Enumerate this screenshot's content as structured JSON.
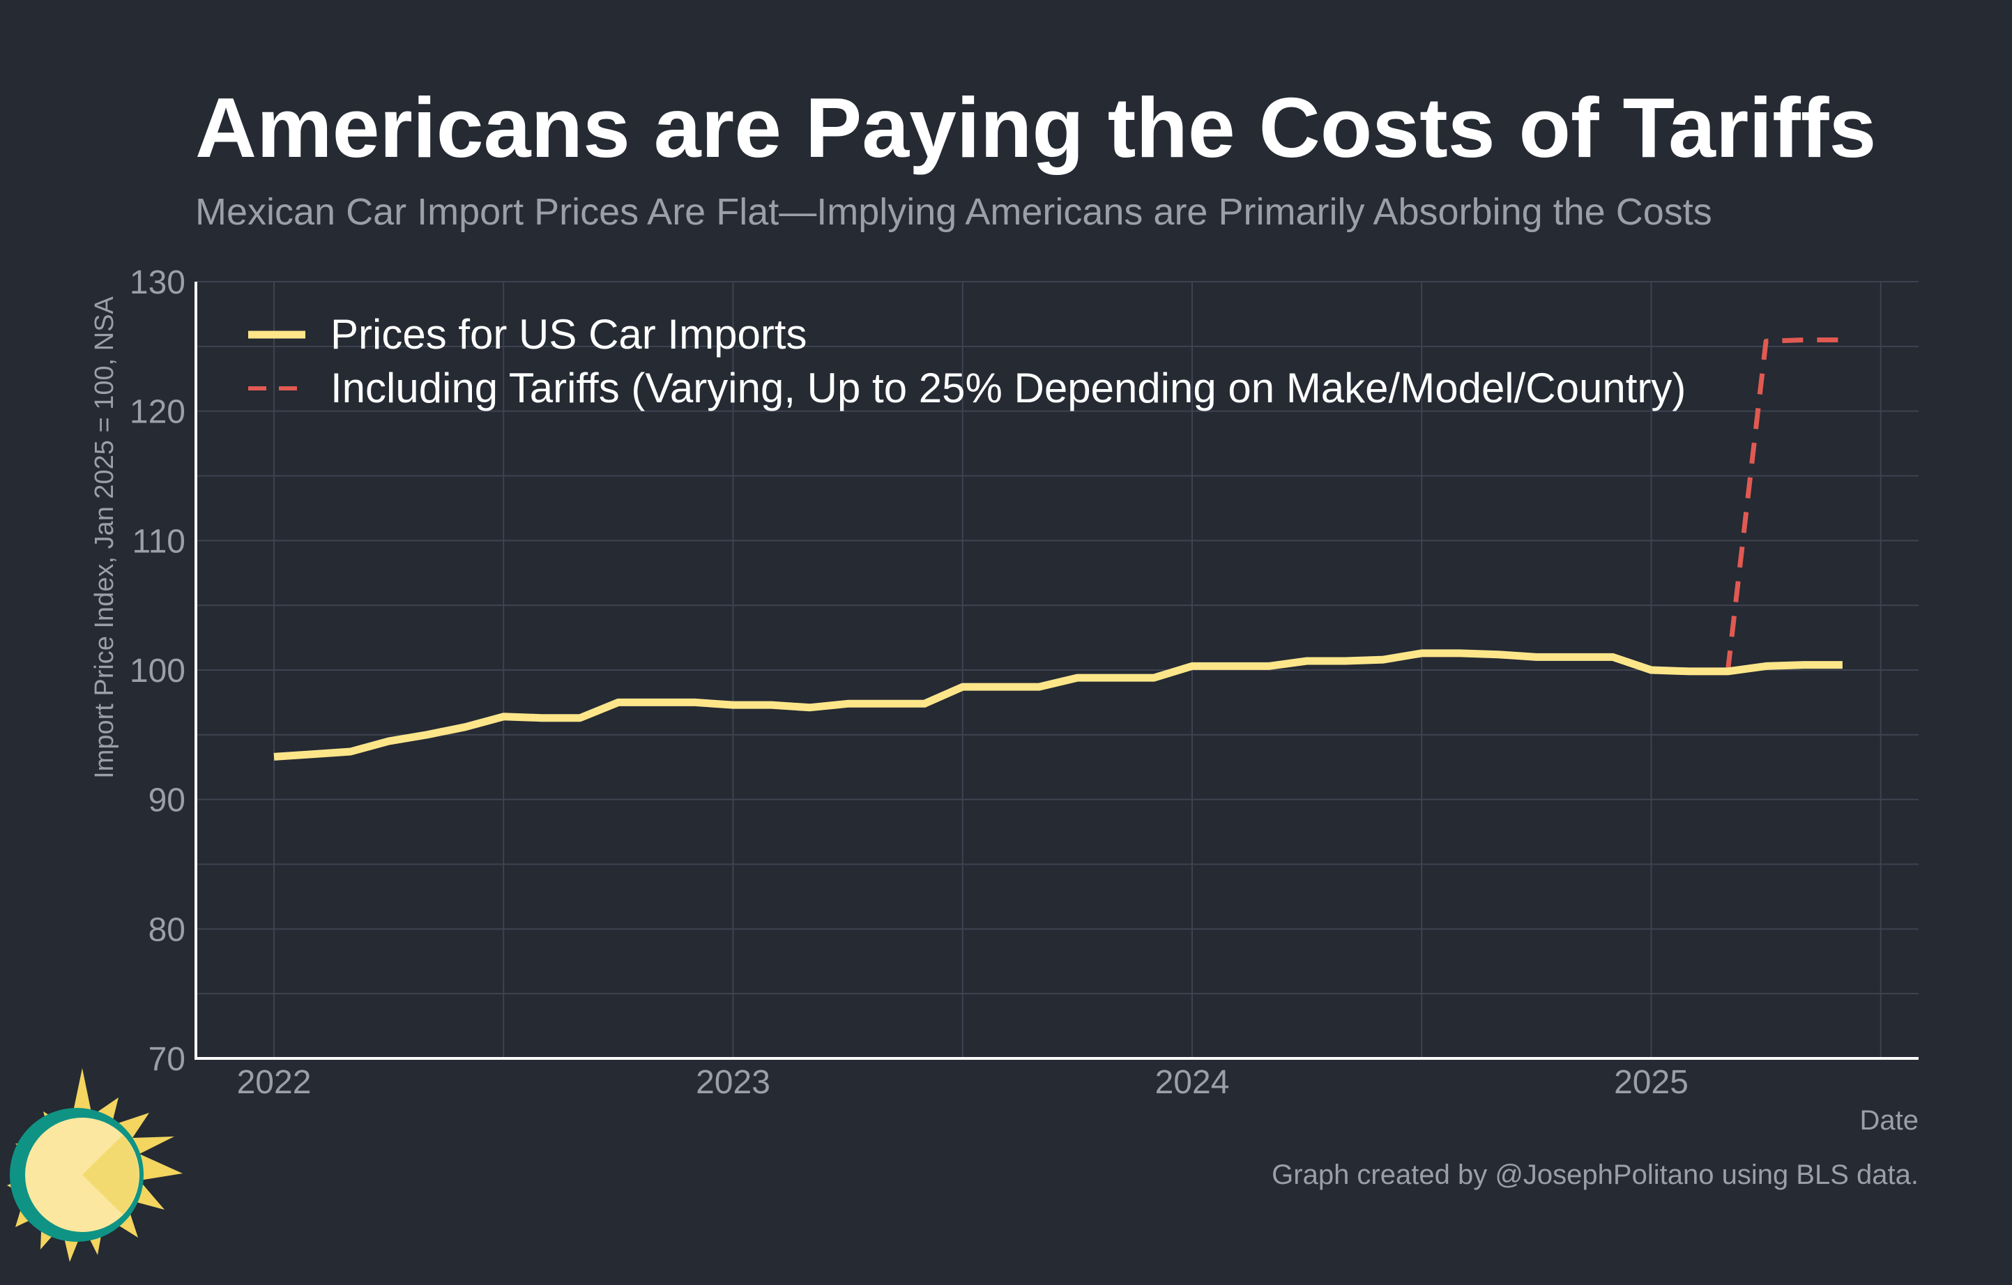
{
  "title": "Americans are Paying the Costs of Tariffs",
  "subtitle": "Mexican Car Import Prices Are Flat—Implying Americans are Primarily Absorbing the Costs",
  "caption": "Graph created by @JosephPolitano using BLS data.",
  "logo_icon": "sun-icon",
  "chart_data": {
    "type": "line",
    "xlabel": "Date",
    "ylabel": "Import Price Index, Jan 2025 = 100, NSA",
    "ylim": [
      70,
      130
    ],
    "yticks": [
      70,
      80,
      90,
      100,
      110,
      120,
      130
    ],
    "xticks": [
      "2022",
      "2023",
      "2024",
      "2025"
    ],
    "grid": true,
    "legend_position": "top-left",
    "series": [
      {
        "name": "Prices for US Car Imports",
        "color": "#fde68a",
        "style": "solid",
        "x": [
          "2022-01",
          "2022-02",
          "2022-03",
          "2022-04",
          "2022-05",
          "2022-06",
          "2022-07",
          "2022-08",
          "2022-09",
          "2022-10",
          "2022-11",
          "2022-12",
          "2023-01",
          "2023-02",
          "2023-03",
          "2023-04",
          "2023-05",
          "2023-06",
          "2023-07",
          "2023-08",
          "2023-09",
          "2023-10",
          "2023-11",
          "2023-12",
          "2024-01",
          "2024-02",
          "2024-03",
          "2024-04",
          "2024-05",
          "2024-06",
          "2024-07",
          "2024-08",
          "2024-09",
          "2024-10",
          "2024-11",
          "2024-12",
          "2025-01",
          "2025-02",
          "2025-03",
          "2025-04",
          "2025-05",
          "2025-06"
        ],
        "values": [
          93.3,
          93.5,
          93.7,
          94.5,
          95.0,
          95.6,
          96.4,
          96.3,
          96.3,
          97.5,
          97.5,
          97.5,
          97.3,
          97.3,
          97.1,
          97.4,
          97.4,
          97.4,
          98.7,
          98.7,
          98.7,
          99.4,
          99.4,
          99.4,
          100.3,
          100.3,
          100.3,
          100.7,
          100.7,
          100.8,
          101.3,
          101.3,
          101.2,
          101.0,
          101.0,
          101.0,
          100.0,
          99.9,
          99.9,
          100.3,
          100.4,
          100.4
        ]
      },
      {
        "name": "Including Tariffs (Varying, Up to 25% Depending on Make/Model/Country)",
        "color": "#e05a52",
        "style": "dashed",
        "x": [
          "2025-03",
          "2025-04",
          "2025-05",
          "2025-06"
        ],
        "values": [
          99.9,
          125.4,
          125.5,
          125.5
        ]
      }
    ]
  }
}
